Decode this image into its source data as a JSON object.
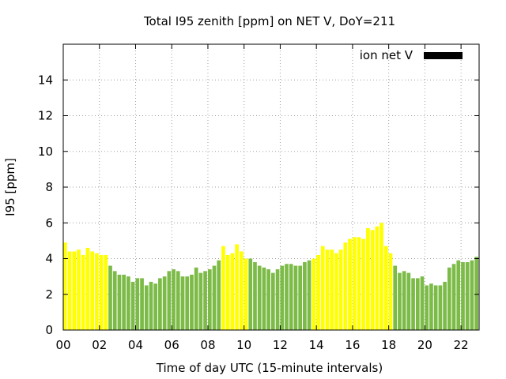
{
  "chart_data": {
    "type": "bar",
    "title": "Total I95 zenith [ppm] on NET V, DoY=211",
    "xlabel": "Time of day UTC (15-minute intervals)",
    "ylabel": "I95 [ppm]",
    "xlim": [
      0,
      23
    ],
    "ylim": [
      0,
      16
    ],
    "x_ticks": [
      "00",
      "02",
      "04",
      "06",
      "08",
      "10",
      "12",
      "14",
      "16",
      "18",
      "20",
      "22"
    ],
    "y_ticks": [
      "0",
      "2",
      "4",
      "6",
      "8",
      "10",
      "12",
      "14"
    ],
    "grid": true,
    "legend": {
      "label": "ion net V",
      "placement": "top-right"
    },
    "interval_hours": 0.25,
    "colors": {
      "yellow": "#ffff00",
      "green": "#7cbb48",
      "legend_swatch": "#000000"
    },
    "values": [
      4.9,
      4.4,
      4.4,
      4.5,
      4.2,
      4.6,
      4.4,
      4.3,
      4.2,
      4.2,
      3.6,
      3.3,
      3.1,
      3.1,
      3.0,
      2.7,
      2.9,
      2.9,
      2.5,
      2.7,
      2.6,
      2.9,
      3.0,
      3.3,
      3.4,
      3.3,
      3.0,
      3.0,
      3.1,
      3.5,
      3.2,
      3.3,
      3.4,
      3.6,
      3.9,
      4.7,
      4.2,
      4.3,
      4.8,
      4.4,
      4.0,
      4.0,
      3.8,
      3.6,
      3.5,
      3.4,
      3.2,
      3.4,
      3.6,
      3.7,
      3.7,
      3.6,
      3.6,
      3.8,
      3.9,
      4.0,
      4.2,
      4.7,
      4.5,
      4.5,
      4.3,
      4.5,
      4.9,
      5.1,
      5.2,
      5.2,
      5.1,
      5.7,
      5.6,
      5.8,
      6.0,
      4.7,
      4.3,
      3.6,
      3.2,
      3.3,
      3.2,
      2.9,
      2.9,
      3.0,
      2.5,
      2.6,
      2.5,
      2.5,
      2.7,
      3.5,
      3.7,
      3.9,
      3.8,
      3.8,
      3.9,
      4.1
    ],
    "bar_colors": [
      "yellow",
      "yellow",
      "yellow",
      "yellow",
      "yellow",
      "yellow",
      "yellow",
      "yellow",
      "yellow",
      "yellow",
      "green",
      "green",
      "green",
      "green",
      "green",
      "green",
      "green",
      "green",
      "green",
      "green",
      "green",
      "green",
      "green",
      "green",
      "green",
      "green",
      "green",
      "green",
      "green",
      "green",
      "green",
      "green",
      "green",
      "green",
      "green",
      "yellow",
      "yellow",
      "yellow",
      "yellow",
      "yellow",
      "yellow",
      "green",
      "green",
      "green",
      "green",
      "green",
      "green",
      "green",
      "green",
      "green",
      "green",
      "green",
      "green",
      "green",
      "green",
      "yellow",
      "yellow",
      "yellow",
      "yellow",
      "yellow",
      "yellow",
      "yellow",
      "yellow",
      "yellow",
      "yellow",
      "yellow",
      "yellow",
      "yellow",
      "yellow",
      "yellow",
      "yellow",
      "yellow",
      "yellow",
      "green",
      "green",
      "green",
      "green",
      "green",
      "green",
      "green",
      "green",
      "green",
      "green",
      "green",
      "green",
      "green",
      "green",
      "green",
      "green",
      "green",
      "green",
      "green"
    ]
  }
}
